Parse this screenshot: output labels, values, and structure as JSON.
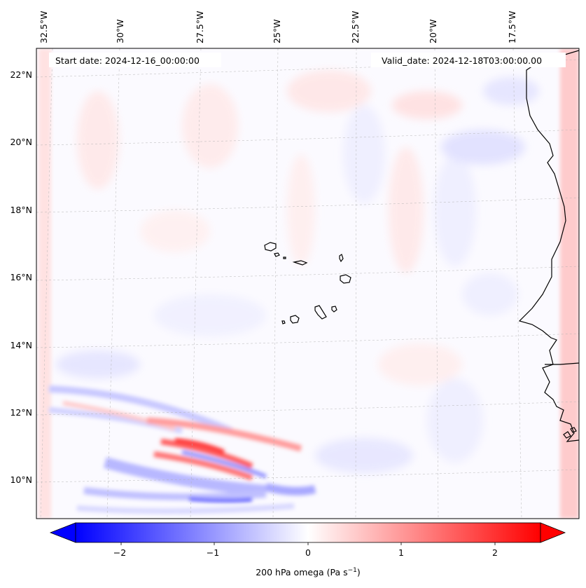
{
  "header": {
    "start_date": "Start date: 2024-12-16_00:00:00",
    "valid_date": "Valid_date: 2024-12-18T03:00:00.00"
  },
  "map": {
    "longitude_labels": [
      "32.5°W",
      "30°W",
      "27.5°W",
      "25°W",
      "22.5°W",
      "20°W",
      "17.5°W"
    ],
    "latitude_labels": [
      "22°N",
      "20°N",
      "18°N",
      "16°N",
      "14°N",
      "12°N",
      "10°N"
    ],
    "field": "200 hPa vertical velocity (omega)",
    "gridlines": true
  },
  "colorbar": {
    "ticks": [
      "−2",
      "−1",
      "0",
      "1",
      "2"
    ],
    "label": "200 hPa omega (Pa s",
    "label_sup": "−1",
    "label_close": ")",
    "min_color": "#0000ff",
    "mid_color": "#ffffff",
    "max_color": "#ff0000",
    "range": [
      -2.7,
      2.7
    ]
  }
}
